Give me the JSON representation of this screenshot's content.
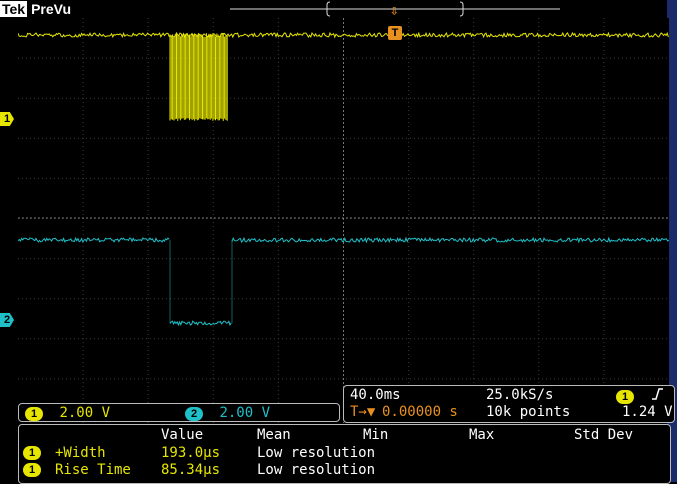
{
  "header": {
    "brand": "Tek",
    "mode": "PreVu"
  },
  "trigger": {
    "marker_label": "T",
    "arrow": "⇩"
  },
  "channels": [
    {
      "marker": "1",
      "scale": "2.00 V",
      "color": "#e6e600"
    },
    {
      "marker": "2",
      "scale": "2.00 V",
      "color": "#20c0c8"
    }
  ],
  "acquisition": {
    "timebase": "40.0ms",
    "sample_rate": "25.0kS/s",
    "trigger_position": "0.00000 s",
    "record_length": "10k points",
    "trigger_source": "1",
    "trigger_slope_icon": "rising-edge-icon",
    "trigger_level": "1.24 V",
    "trigger_pos_prefix": "T→▼"
  },
  "measurements": {
    "headers": [
      "Value",
      "Mean",
      "Min",
      "Max",
      "Std Dev"
    ],
    "rows": [
      {
        "channel": "1",
        "name": "+Width",
        "value": "193.0µs",
        "mean": "Low resolution"
      },
      {
        "channel": "1",
        "name": "Rise Time",
        "value": "85.34µs",
        "mean": "Low resolution"
      }
    ]
  }
}
